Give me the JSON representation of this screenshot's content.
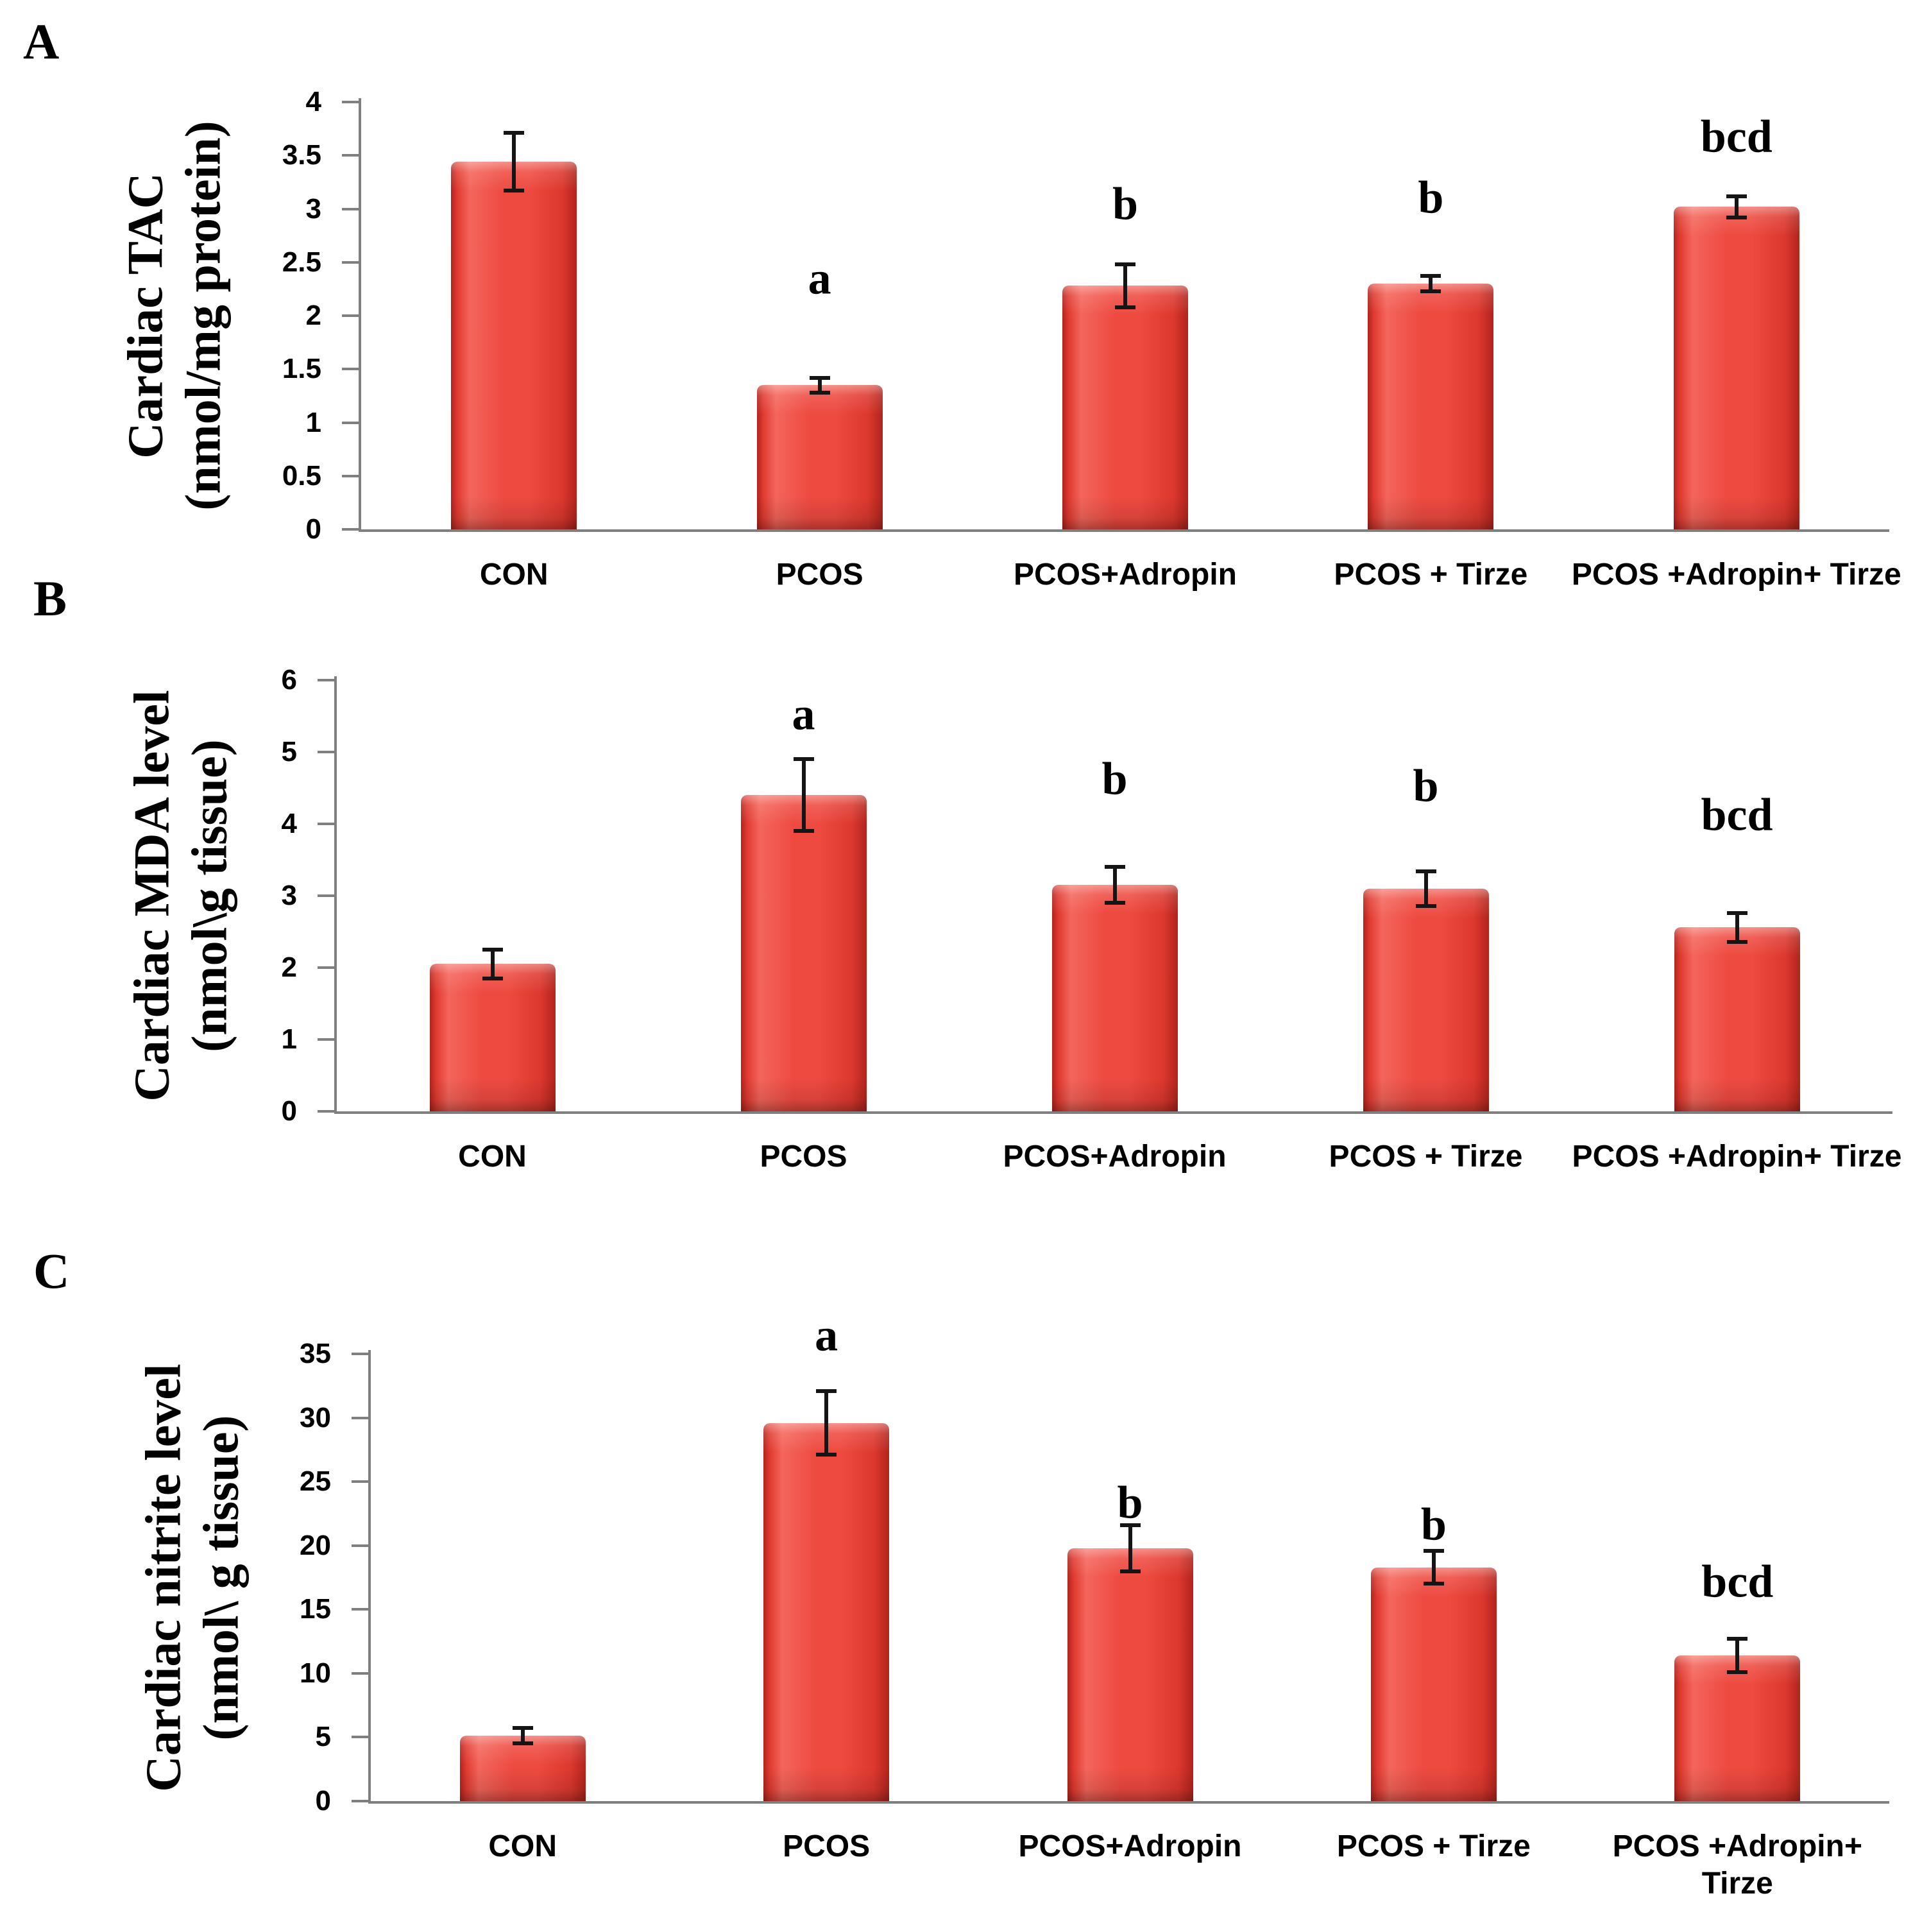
{
  "chart_data": [
    {
      "type": "bar",
      "panel_letter": "A",
      "ylabel_lines": [
        "Cardiac TAC",
        "(nmol/mg protein)"
      ],
      "ylabel": "Cardiac TAC (nmol/mg protein)",
      "xlabel": "",
      "title": "",
      "ylim": [
        0,
        4
      ],
      "ytick_labels": [
        "0",
        "0.5",
        "1",
        "1.5",
        "2",
        "2.5",
        "3",
        "3.5",
        "4"
      ],
      "grid": false,
      "legend": false,
      "categories": [
        "CON",
        "PCOS",
        "PCOS+Adropin",
        "PCOS + Tirze",
        "PCOS +Adropin+ Tirze"
      ],
      "values": [
        3.44,
        1.35,
        2.28,
        2.3,
        3.02
      ],
      "errors": [
        0.27,
        0.07,
        0.2,
        0.07,
        0.1
      ],
      "sig_letters": [
        "",
        "a",
        "b",
        "b",
        "bcd"
      ],
      "sig_letter_y": [
        null,
        2.33,
        3.03,
        3.09,
        3.66
      ]
    },
    {
      "type": "bar",
      "panel_letter": "B",
      "ylabel_lines": [
        "Cardiac MDA level",
        "(nmol\\g tissue)"
      ],
      "ylabel": "Cardiac MDA level (nmol\\g tissue)",
      "xlabel": "",
      "title": "",
      "ylim": [
        0,
        6
      ],
      "ytick_labels": [
        "0",
        "1",
        "2",
        "3",
        "4",
        "5",
        "6"
      ],
      "grid": false,
      "legend": false,
      "categories": [
        "CON",
        "PCOS",
        "PCOS+Adropin",
        "PCOS + Tirze",
        "PCOS +Adropin+ Tirze"
      ],
      "values": [
        2.05,
        4.4,
        3.15,
        3.1,
        2.56
      ],
      "errors": [
        0.2,
        0.5,
        0.25,
        0.24,
        0.2
      ],
      "sig_letters": [
        "",
        "a",
        "b",
        "b",
        "bcd"
      ],
      "sig_letter_y": [
        null,
        5.5,
        4.6,
        4.5,
        4.1
      ]
    },
    {
      "type": "bar",
      "panel_letter": "C",
      "ylabel_lines": [
        "Cardiac nitrite level",
        "(nmol\\ g tissue)"
      ],
      "ylabel": "Cardiac nitrite level (nmol\\ g tissue)",
      "xlabel": "",
      "title": "",
      "ylim": [
        0,
        35
      ],
      "ytick_labels": [
        "0",
        "5",
        "10",
        "15",
        "20",
        "25",
        "30",
        "35"
      ],
      "grid": false,
      "legend": false,
      "categories": [
        "CON",
        "PCOS",
        "PCOS+Adropin",
        "PCOS + Tirze",
        "PCOS +Adropin+ Tirze"
      ],
      "values": [
        5.1,
        29.6,
        19.8,
        18.3,
        11.4
      ],
      "errors": [
        0.6,
        2.5,
        1.8,
        1.3,
        1.3
      ],
      "sig_letters": [
        "",
        "a",
        "b",
        "b",
        "bcd"
      ],
      "sig_letter_y": [
        null,
        36.3,
        23.2,
        21.5,
        17
      ]
    }
  ],
  "colors": {
    "bar_main": "#ee4a40",
    "bar_highlight": "#f4655b",
    "bar_edge_dark": "#b1241d",
    "axis_line": "#7f7f7f",
    "error_bar": "#151515",
    "text": "#000000",
    "background": "#ffffff"
  }
}
